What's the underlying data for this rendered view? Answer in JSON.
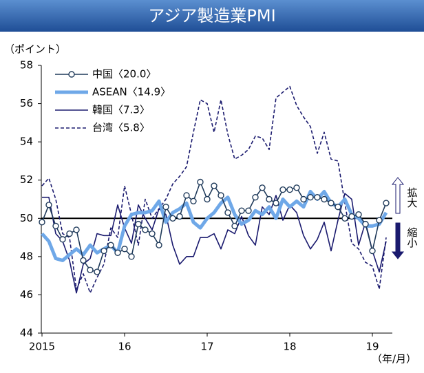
{
  "chart_data": {
    "type": "line",
    "title": "アジア製造業PMI",
    "y_label": "（ポイント）",
    "x_label": "（年/月）",
    "annotations": [
      "拡大",
      "縮小"
    ],
    "categories": [
      "2015",
      null,
      null,
      null,
      null,
      null,
      null,
      null,
      null,
      null,
      null,
      null,
      "16",
      null,
      null,
      null,
      null,
      null,
      null,
      null,
      null,
      null,
      null,
      null,
      "17",
      null,
      null,
      null,
      null,
      null,
      null,
      null,
      null,
      null,
      null,
      null,
      "18",
      null,
      null,
      null,
      null,
      null,
      null,
      null,
      null,
      null,
      null,
      null,
      "19",
      null,
      null
    ],
    "ylim": [
      44,
      58
    ],
    "yticks": [
      44,
      46,
      48,
      50,
      52,
      54,
      56,
      58
    ],
    "hline": 50,
    "grid": false,
    "series": [
      {
        "name": "中国〈20.0〉",
        "color": "#1f3a5a",
        "marker": "circle",
        "values": [
          49.8,
          50.7,
          49.6,
          48.9,
          49.2,
          49.4,
          47.8,
          47.3,
          47.2,
          48.3,
          48.6,
          48.2,
          48.4,
          48.0,
          49.7,
          49.4,
          49.2,
          48.6,
          50.6,
          50.0,
          50.1,
          51.2,
          50.9,
          51.9,
          51.0,
          51.7,
          51.2,
          50.3,
          49.6,
          50.4,
          50.4,
          51.1,
          51.6,
          51.0,
          50.8,
          51.5,
          51.5,
          51.6,
          51.0,
          51.1,
          51.1,
          51.0,
          50.8,
          50.6,
          50.0,
          50.1,
          50.2,
          49.7,
          48.3,
          49.9,
          50.8
        ]
      },
      {
        "name": "ASEAN〈14.9〉",
        "color": "#6fa8e8",
        "width": 5,
        "values": [
          49.2,
          48.8,
          47.9,
          47.8,
          48.1,
          48.4,
          48.1,
          48.6,
          48.2,
          48.4,
          48.6,
          48.2,
          49.6,
          50.2,
          50.3,
          50.3,
          50.4,
          50.9,
          49.8,
          50.3,
          50.5,
          50.8,
          49.8,
          49.5,
          50.0,
          50.3,
          50.8,
          51.1,
          50.2,
          49.7,
          49.9,
          50.4,
          50.2,
          50.6,
          50.0,
          51.0,
          50.6,
          50.9,
          50.6,
          51.4,
          51.0,
          51.4,
          50.8,
          50.6,
          51.0,
          50.2,
          50.0,
          49.6,
          49.6,
          49.7,
          50.3
        ]
      },
      {
        "name": "韓国〈7.3〉",
        "color": "#1a1a6e",
        "values": [
          51.1,
          51.1,
          49.2,
          48.8,
          47.8,
          46.1,
          47.6,
          47.9,
          49.2,
          49.1,
          49.1,
          50.7,
          49.5,
          48.7,
          50.7,
          50.0,
          49.4,
          50.5,
          50.2,
          48.6,
          47.6,
          48.0,
          48.0,
          49.0,
          49.0,
          49.2,
          48.4,
          49.4,
          49.2,
          50.1,
          49.1,
          48.6,
          50.6,
          50.2,
          51.2,
          49.9,
          50.7,
          50.3,
          49.1,
          48.4,
          48.9,
          49.8,
          48.3,
          49.9,
          51.3,
          51.0,
          48.6,
          49.8,
          48.3,
          47.2,
          48.8
        ]
      },
      {
        "name": "台湾〈5.8〉",
        "color": "#1a1a6e",
        "dashed": true,
        "values": [
          51.7,
          52.1,
          51.0,
          49.2,
          49.0,
          46.3,
          47.1,
          46.1,
          46.9,
          47.6,
          49.5,
          49.0,
          51.7,
          50.2,
          48.6,
          51.0,
          50.0,
          50.5,
          51.0,
          51.8,
          52.2,
          52.7,
          54.5,
          56.2,
          56.0,
          54.5,
          56.2,
          54.4,
          53.1,
          53.3,
          53.6,
          54.3,
          54.2,
          53.6,
          56.3,
          56.6,
          56.9,
          55.9,
          55.3,
          54.8,
          53.4,
          54.5,
          53.1,
          53.0,
          50.8,
          48.7,
          48.4,
          47.7,
          47.5,
          46.3,
          49.0
        ]
      }
    ]
  }
}
